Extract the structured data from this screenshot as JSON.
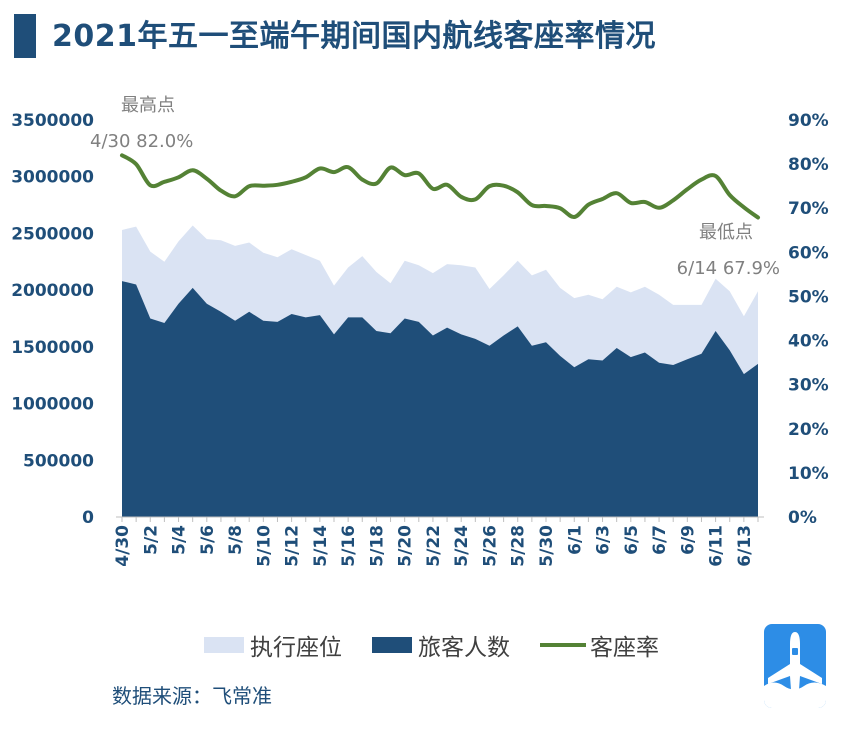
{
  "title": "2021年五一至端午期间国内航线客座率情况",
  "source": "数据来源：飞常准",
  "legend": {
    "seats": "执行座位",
    "passengers": "旅客人数",
    "load_factor": "客座率"
  },
  "colors": {
    "title": "#1f4e79",
    "seats": "#dae3f3",
    "passengers": "#1f4e79",
    "load_factor": "#548235",
    "axis_text": "#1f4e79",
    "annotation": "#808080",
    "logo_bg": "#2d8de6"
  },
  "icons": {
    "logo": "airplane-logo-icon"
  },
  "chart_data": {
    "type": "area",
    "categories": [
      "4/30",
      "5/1",
      "5/2",
      "5/3",
      "5/4",
      "5/5",
      "5/6",
      "5/7",
      "5/8",
      "5/9",
      "5/10",
      "5/11",
      "5/12",
      "5/13",
      "5/14",
      "5/15",
      "5/16",
      "5/17",
      "5/18",
      "5/19",
      "5/20",
      "5/21",
      "5/22",
      "5/23",
      "5/24",
      "5/25",
      "5/26",
      "5/27",
      "5/28",
      "5/29",
      "5/30",
      "5/31",
      "6/1",
      "6/2",
      "6/3",
      "6/4",
      "6/5",
      "6/6",
      "6/7",
      "6/8",
      "6/9",
      "6/10",
      "6/11",
      "6/12",
      "6/13",
      "6/14"
    ],
    "x_tick_labels": [
      "4/30",
      "5/2",
      "5/4",
      "5/6",
      "5/8",
      "5/10",
      "5/12",
      "5/14",
      "5/16",
      "5/18",
      "5/20",
      "5/22",
      "5/24",
      "5/26",
      "5/28",
      "5/30",
      "6/1",
      "6/3",
      "6/5",
      "6/7",
      "6/9",
      "6/11",
      "6/13"
    ],
    "series": [
      {
        "name": "执行座位",
        "axis": "left",
        "values": [
          2530000,
          2560000,
          2340000,
          2250000,
          2430000,
          2570000,
          2450000,
          2440000,
          2390000,
          2420000,
          2330000,
          2290000,
          2360000,
          2310000,
          2260000,
          2040000,
          2200000,
          2300000,
          2160000,
          2060000,
          2260000,
          2220000,
          2150000,
          2230000,
          2220000,
          2200000,
          2010000,
          2130000,
          2260000,
          2130000,
          2180000,
          2020000,
          1930000,
          1960000,
          1920000,
          2030000,
          1980000,
          2030000,
          1960000,
          1870000,
          1870000,
          1870000,
          2100000,
          1990000,
          1770000,
          1990000
        ]
      },
      {
        "name": "旅客人数",
        "axis": "left",
        "values": [
          2080000,
          2050000,
          1750000,
          1710000,
          1880000,
          2020000,
          1880000,
          1810000,
          1730000,
          1810000,
          1730000,
          1720000,
          1790000,
          1760000,
          1780000,
          1610000,
          1760000,
          1760000,
          1640000,
          1620000,
          1750000,
          1720000,
          1600000,
          1670000,
          1610000,
          1570000,
          1510000,
          1600000,
          1680000,
          1510000,
          1540000,
          1420000,
          1320000,
          1390000,
          1380000,
          1490000,
          1410000,
          1450000,
          1360000,
          1340000,
          1390000,
          1440000,
          1640000,
          1470000,
          1260000,
          1350000
        ]
      },
      {
        "name": "客座率",
        "axis": "right",
        "values": [
          82.0,
          80.0,
          75.2,
          76.0,
          77.0,
          78.6,
          76.7,
          74.0,
          72.7,
          75.0,
          75.1,
          75.3,
          76.0,
          77.0,
          79.0,
          78.2,
          79.3,
          76.5,
          75.6,
          79.2,
          77.5,
          77.9,
          74.4,
          75.3,
          72.6,
          72.0,
          75.0,
          75.1,
          73.6,
          70.7,
          70.5,
          70.0,
          68.0,
          70.8,
          72.1,
          73.4,
          71.2,
          71.4,
          70.1,
          71.8,
          74.3,
          76.5,
          77.3,
          73.0,
          70.2,
          67.9
        ]
      }
    ],
    "y_left": {
      "min": 0,
      "max": 3500000,
      "ticks": [
        0,
        500000,
        1000000,
        1500000,
        2000000,
        2500000,
        3000000,
        3500000
      ]
    },
    "y_right": {
      "min": 0,
      "max": 90,
      "ticks": [
        0,
        10,
        20,
        30,
        40,
        50,
        60,
        70,
        80,
        90
      ],
      "unit": "%"
    },
    "annotations": [
      {
        "label": "最高点",
        "text": "4/30 82.0%",
        "index": 0,
        "series": "客座率"
      },
      {
        "label": "最低点",
        "text": "6/14 67.9%",
        "index": 45,
        "series": "客座率"
      }
    ],
    "legend_position": "bottom",
    "grid": false
  }
}
